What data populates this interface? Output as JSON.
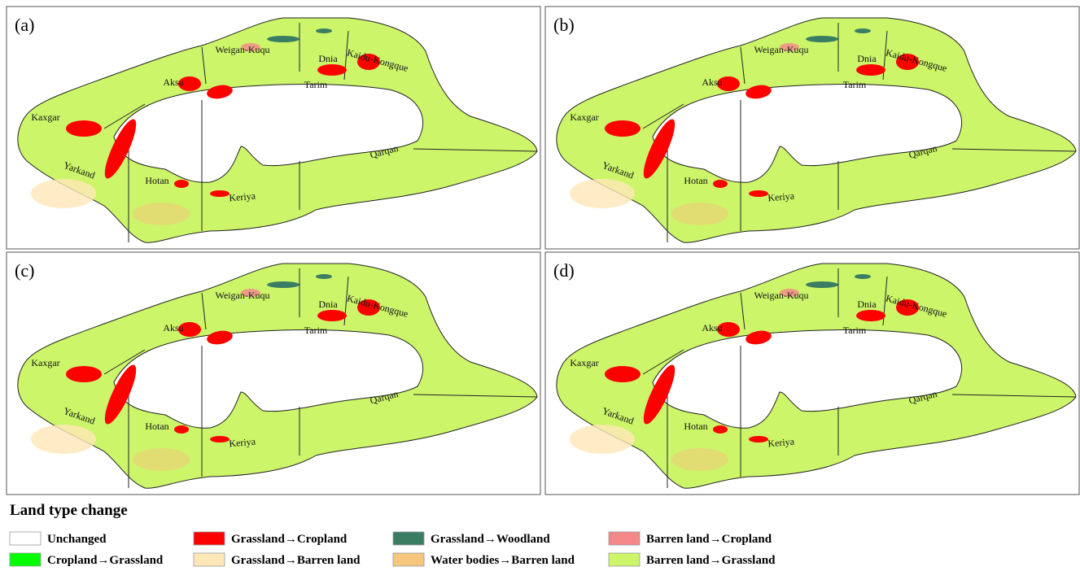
{
  "panels": [
    {
      "label": "(a)"
    },
    {
      "label": "(b)"
    },
    {
      "label": "(c)"
    },
    {
      "label": "(d)"
    }
  ],
  "regions": [
    "Weigan-Kuqu",
    "Dnia",
    "Kaidu-Kongque",
    "Aksu",
    "Tarim",
    "Kaxgar",
    "Yarkand",
    "Hotan",
    "Keriya",
    "Qarqan"
  ],
  "legend": {
    "title": "Land type change",
    "items": [
      {
        "label": "Unchanged",
        "color": "#ffffff"
      },
      {
        "label": "Grassland→Cropland",
        "color": "#ff0000"
      },
      {
        "label": "Grassland→Woodland",
        "color": "#3b7d62"
      },
      {
        "label": "Barren land→Cropland",
        "color": "#f4878a"
      },
      {
        "label": "Cropland→Grassland",
        "color": "#00ff00"
      },
      {
        "label": "Grassland→Barren land",
        "color": "#ffe7b8"
      },
      {
        "label": "Water bodies→Barren land",
        "color": "#f5c67c"
      },
      {
        "label": "Barren land→Grassland",
        "color": "#ccf56a"
      }
    ]
  }
}
